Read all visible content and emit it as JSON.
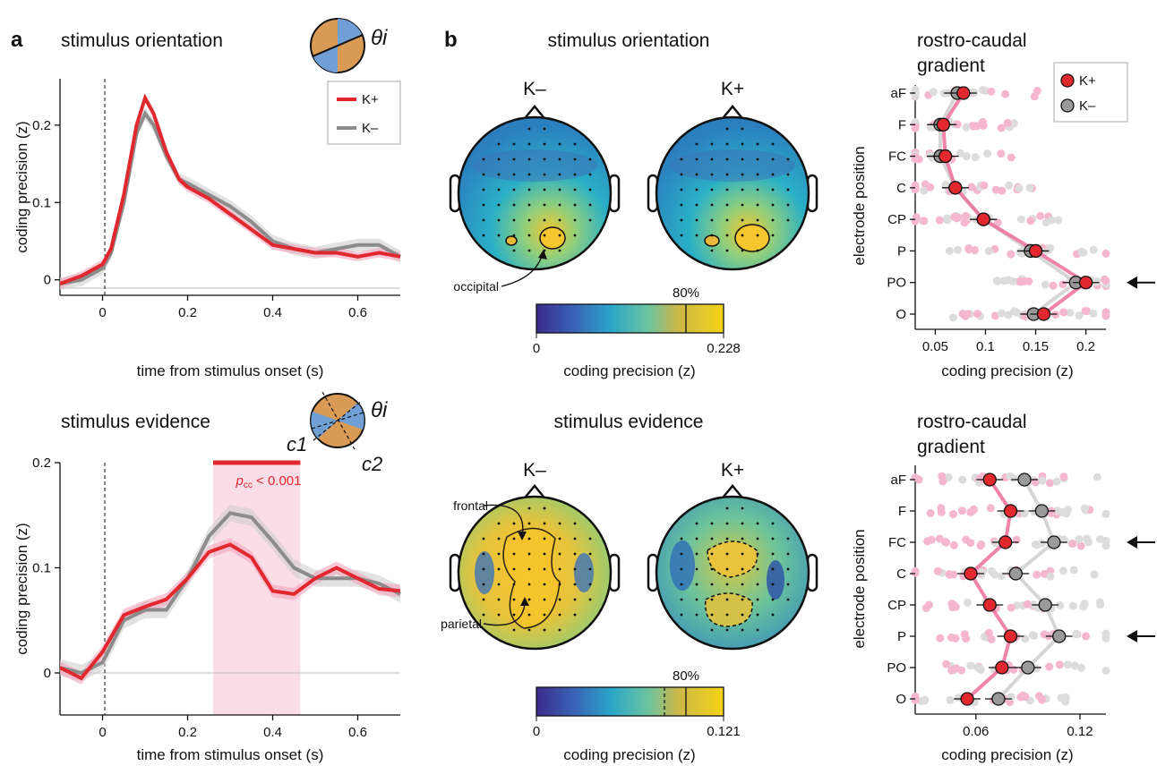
{
  "panel_letters": {
    "a": "a",
    "b": "b"
  },
  "time_plots": [
    {
      "title": "stimulus orientation",
      "theta_label": "θi",
      "ylabel": "coding precision (z)",
      "xlabel": "time from stimulus onset (s)",
      "xticks": [
        "0",
        "0.2",
        "0.4",
        "0.6"
      ],
      "yticks": [
        "0",
        "0.1",
        "0.2"
      ],
      "legend": [
        "K+",
        "K–"
      ]
    },
    {
      "title": "stimulus evidence",
      "theta_label": "θi",
      "c1_label": "c1",
      "c2_label": "c2",
      "ylabel": "coding precision (z)",
      "xlabel": "time from stimulus onset (s)",
      "xticks": [
        "0",
        "0.2",
        "0.4",
        "0.6"
      ],
      "yticks": [
        "0",
        "0.1",
        "0.2"
      ],
      "sig_label_p": "p",
      "sig_label_sub": "cc",
      "sig_label_rest": " < 0.001"
    }
  ],
  "topo_panels": [
    {
      "title": "stimulus orientation",
      "left_label": "K–",
      "right_label": "K+",
      "annotation": "occipital",
      "colorbar_pct": "80%",
      "colorbar_min": "0",
      "colorbar_max": "0.228",
      "colorbar_label": "coding precision (z)"
    },
    {
      "title": "stimulus evidence",
      "left_label": "K–",
      "right_label": "K+",
      "annotation_1": "frontal",
      "annotation_2": "parietal",
      "colorbar_pct": "80%",
      "colorbar_min": "0",
      "colorbar_max": "0.121",
      "colorbar_label": "coding precision (z)"
    }
  ],
  "gradient_panels": [
    {
      "title_line1": "rostro-caudal",
      "title_line2": "gradient",
      "ylabel": "electrode position",
      "xlabel": "coding precision (z)",
      "categories": [
        "aF",
        "F",
        "FC",
        "C",
        "CP",
        "P",
        "PO",
        "O"
      ],
      "xticks": [
        "0.05",
        "0.1",
        "0.15",
        "0.2"
      ],
      "legend": [
        "K+",
        "K–"
      ]
    },
    {
      "title_line1": "rostro-caudal",
      "title_line2": "gradient",
      "ylabel": "electrode position",
      "xlabel": "coding precision (z)",
      "categories": [
        "aF",
        "F",
        "FC",
        "C",
        "CP",
        "P",
        "PO",
        "O"
      ],
      "xticks": [
        "0.06",
        "0.12"
      ]
    }
  ],
  "colors": {
    "k_plus": "#e0282e",
    "k_minus": "#8c8c8c",
    "k_plus_light": "#f3a6bd",
    "k_minus_light": "#cfcfcf",
    "sig_shade": "#fbdde8"
  },
  "chart_data": [
    {
      "type": "line",
      "title": "stimulus orientation",
      "xlabel": "time from stimulus onset (s)",
      "ylabel": "coding precision (z)",
      "xlim": [
        -0.1,
        0.7
      ],
      "ylim": [
        -0.02,
        0.26
      ],
      "x": [
        -0.1,
        -0.05,
        0.0,
        0.02,
        0.05,
        0.08,
        0.1,
        0.12,
        0.15,
        0.18,
        0.2,
        0.25,
        0.3,
        0.35,
        0.4,
        0.45,
        0.5,
        0.55,
        0.6,
        0.65,
        0.7
      ],
      "series": [
        {
          "name": "K+",
          "values": [
            -0.005,
            0.005,
            0.02,
            0.04,
            0.11,
            0.2,
            0.235,
            0.215,
            0.165,
            0.13,
            0.12,
            0.105,
            0.085,
            0.065,
            0.045,
            0.04,
            0.035,
            0.035,
            0.03,
            0.035,
            0.03
          ]
        },
        {
          "name": "K–",
          "values": [
            -0.005,
            0.0,
            0.015,
            0.035,
            0.1,
            0.19,
            0.215,
            0.2,
            0.16,
            0.13,
            0.125,
            0.11,
            0.095,
            0.075,
            0.05,
            0.04,
            0.035,
            0.04,
            0.045,
            0.045,
            0.03
          ]
        }
      ]
    },
    {
      "type": "line",
      "title": "stimulus evidence",
      "xlabel": "time from stimulus onset (s)",
      "ylabel": "coding precision (z)",
      "xlim": [
        -0.1,
        0.7
      ],
      "ylim": [
        -0.04,
        0.2
      ],
      "significant_window": [
        0.26,
        0.465
      ],
      "x": [
        -0.1,
        -0.05,
        0.0,
        0.05,
        0.1,
        0.15,
        0.2,
        0.25,
        0.3,
        0.35,
        0.4,
        0.45,
        0.5,
        0.55,
        0.6,
        0.65,
        0.7
      ],
      "series": [
        {
          "name": "K+",
          "values": [
            0.005,
            -0.005,
            0.02,
            0.055,
            0.063,
            0.07,
            0.09,
            0.115,
            0.122,
            0.11,
            0.078,
            0.075,
            0.09,
            0.1,
            0.09,
            0.08,
            0.078
          ]
        },
        {
          "name": "K–",
          "values": [
            0.005,
            0.0,
            0.01,
            0.05,
            0.06,
            0.06,
            0.09,
            0.13,
            0.152,
            0.148,
            0.125,
            0.1,
            0.09,
            0.09,
            0.09,
            0.085,
            0.075
          ]
        }
      ]
    },
    {
      "type": "scatter",
      "title": "rostro-caudal gradient",
      "xlabel": "coding precision (z)",
      "ylabel": "electrode position",
      "categories": [
        "aF",
        "F",
        "FC",
        "C",
        "CP",
        "P",
        "PO",
        "O"
      ],
      "xlim": [
        0.03,
        0.22
      ],
      "series": [
        {
          "name": "K+",
          "values": [
            0.078,
            0.058,
            0.06,
            0.07,
            0.098,
            0.15,
            0.2,
            0.158
          ]
        },
        {
          "name": "K–",
          "values": [
            0.072,
            0.055,
            0.055,
            0.07,
            0.098,
            0.145,
            0.19,
            0.148
          ]
        }
      ],
      "arrows": [
        "PO"
      ]
    },
    {
      "type": "scatter",
      "title": "rostro-caudal gradient",
      "xlabel": "coding precision (z)",
      "ylabel": "electrode position",
      "categories": [
        "aF",
        "F",
        "FC",
        "C",
        "CP",
        "P",
        "PO",
        "O"
      ],
      "xlim": [
        0.025,
        0.135
      ],
      "series": [
        {
          "name": "K+",
          "values": [
            0.068,
            0.08,
            0.077,
            0.057,
            0.068,
            0.08,
            0.075,
            0.055
          ]
        },
        {
          "name": "K–",
          "values": [
            0.088,
            0.098,
            0.105,
            0.083,
            0.1,
            0.108,
            0.09,
            0.073
          ]
        }
      ],
      "arrows": [
        "FC",
        "P"
      ]
    }
  ]
}
